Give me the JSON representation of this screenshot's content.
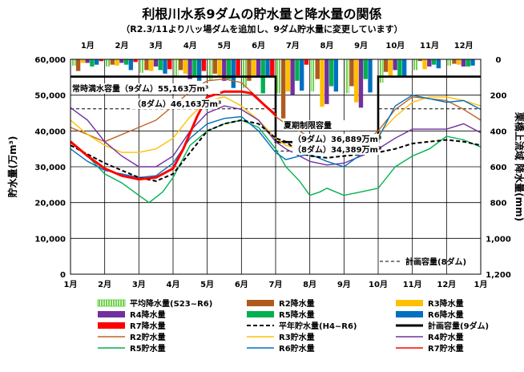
{
  "title": "利根川水系9ダムの貯水量と降水量の関係",
  "subtitle": "（R2.3/11より八ッ場ダムを追加し、9ダム貯水量に変更しています）",
  "axes": {
    "y_left_label": "貯水量(万m³)",
    "y_right_label": "栗橋上流域 降水量(mm)",
    "y_left_ticks": [
      "60,000",
      "50,000",
      "40,000",
      "30,000",
      "20,000",
      "10,000",
      "0"
    ],
    "y_right_ticks": [
      "0",
      "200",
      "400",
      "600",
      "800",
      "1,000",
      "1,200"
    ],
    "x_bottom_ticks": [
      "1月",
      "2月",
      "3月",
      "4月",
      "5月",
      "6月",
      "7月",
      "8月",
      "9月",
      "10月",
      "11月",
      "12月",
      "1月"
    ],
    "x_top_ticks": [
      "1月",
      "2月",
      "3月",
      "4月",
      "5月",
      "6月",
      "7月",
      "8月",
      "9月",
      "10月",
      "11月",
      "12月"
    ]
  },
  "annotations": {
    "normal_full_9": "常時満水容量（9ダム）55,163万m³",
    "normal_full_8": "（8ダム）46,163万m³",
    "summer_limit": "夏期制限容量",
    "summer_limit_9": "（9ダム）36,889万m³",
    "summer_limit_8": "（8ダム）34,389万m³",
    "plan_8_label": "計画容量(8ダム)"
  },
  "legend": [
    {
      "label": "平均降水量(S23~R6)",
      "color": "#7fdc5a",
      "style": "hatch"
    },
    {
      "label": "R2降水量",
      "color": "#b05a1e",
      "style": "bar"
    },
    {
      "label": "R3降水量",
      "color": "#ffc000",
      "style": "bar"
    },
    {
      "label": "R4降水量",
      "color": "#7030a0",
      "style": "bar"
    },
    {
      "label": "R5降水量",
      "color": "#00b050",
      "style": "bar"
    },
    {
      "label": "R6降水量",
      "color": "#0070c0",
      "style": "bar"
    },
    {
      "label": "R7降水量",
      "color": "#ff0000",
      "style": "bar"
    },
    {
      "label": "平年貯水量(H4~R6)",
      "color": "#000000",
      "style": "dash"
    },
    {
      "label": "計画容量(9ダム)",
      "color": "#000000",
      "style": "thick"
    },
    {
      "label": "R2貯水量",
      "color": "#c0652a",
      "style": "line"
    },
    {
      "label": "R3貯水量",
      "color": "#ffc000",
      "style": "line"
    },
    {
      "label": "R4貯水量",
      "color": "#7030a0",
      "style": "line"
    },
    {
      "label": "R5貯水量",
      "color": "#00b050",
      "style": "line"
    },
    {
      "label": "R6貯水量",
      "color": "#0070c0",
      "style": "line"
    },
    {
      "label": "R7貯水量",
      "color": "#ff0000",
      "style": "line"
    }
  ],
  "chart_data": {
    "type": "line",
    "xlabel": "",
    "ylabel": "貯水量(万m³)",
    "ylim": [
      0,
      60000
    ],
    "y2label": "栗橋上流域 降水量(mm)",
    "y2lim": [
      0,
      1200
    ],
    "y2_inverted": true,
    "x_unit": "month (1 = Jan 1, 13 = next Jan 1)",
    "xlim": [
      1,
      13
    ],
    "plan_capacity_9": [
      [
        1,
        55163
      ],
      [
        7,
        55163
      ],
      [
        7,
        36889
      ],
      [
        10,
        36889
      ],
      [
        10,
        55163
      ],
      [
        13,
        55163
      ]
    ],
    "plan_capacity_8": [
      [
        1,
        46163
      ],
      [
        7,
        46163
      ],
      [
        7,
        34389
      ],
      [
        10,
        34389
      ],
      [
        10,
        46163
      ],
      [
        13,
        46163
      ]
    ],
    "storage_series": [
      {
        "name": "平年貯水量(H4~R6)",
        "color": "#000000",
        "dash": true,
        "points": [
          [
            1,
            36000
          ],
          [
            1.5,
            33500
          ],
          [
            2,
            31000
          ],
          [
            2.5,
            29000
          ],
          [
            3,
            27000
          ],
          [
            3.5,
            26000
          ],
          [
            4,
            28000
          ],
          [
            4.5,
            34000
          ],
          [
            5,
            40000
          ],
          [
            5.5,
            42000
          ],
          [
            6,
            43000
          ],
          [
            6.5,
            42000
          ],
          [
            7,
            38000
          ],
          [
            7.3,
            37000
          ],
          [
            7.7,
            34000
          ],
          [
            8,
            33000
          ],
          [
            8.5,
            32500
          ],
          [
            9,
            33000
          ],
          [
            9.5,
            33500
          ],
          [
            10,
            34000
          ],
          [
            10.5,
            35000
          ],
          [
            11,
            36500
          ],
          [
            11.5,
            37000
          ],
          [
            12,
            37500
          ],
          [
            12.5,
            37000
          ],
          [
            13,
            36000
          ]
        ]
      },
      {
        "name": "R2貯水量",
        "color": "#c0652a",
        "points": [
          [
            1,
            41000
          ],
          [
            1.5,
            39000
          ],
          [
            2,
            37000
          ],
          [
            2.5,
            39000
          ],
          [
            3,
            41000
          ],
          [
            3.5,
            43000
          ],
          [
            4,
            47000
          ],
          [
            4.5,
            51000
          ],
          [
            5,
            54000
          ],
          [
            5.5,
            54500
          ],
          [
            6,
            53500
          ],
          [
            6.5,
            49000
          ],
          [
            7,
            44000
          ],
          [
            7.3,
            42000
          ],
          [
            7.7,
            40000
          ],
          [
            8,
            38000
          ],
          [
            8.5,
            37000
          ],
          [
            9,
            35000
          ],
          [
            9.5,
            36000
          ],
          [
            10,
            40000
          ],
          [
            10.5,
            46000
          ],
          [
            11,
            49500
          ],
          [
            11.5,
            49000
          ],
          [
            12,
            48500
          ],
          [
            12.5,
            46000
          ],
          [
            13,
            43000
          ]
        ]
      },
      {
        "name": "R3貯水量",
        "color": "#ffc000",
        "points": [
          [
            1,
            43000
          ],
          [
            1.5,
            39000
          ],
          [
            2,
            36000
          ],
          [
            2.5,
            34000
          ],
          [
            3,
            34000
          ],
          [
            3.5,
            35000
          ],
          [
            4,
            38000
          ],
          [
            4.5,
            44000
          ],
          [
            5,
            48500
          ],
          [
            5.5,
            49500
          ],
          [
            6,
            47000
          ],
          [
            6.5,
            43000
          ],
          [
            7,
            38000
          ],
          [
            7.3,
            36000
          ],
          [
            7.7,
            35000
          ],
          [
            8,
            34500
          ],
          [
            8.5,
            36000
          ],
          [
            9,
            36500
          ],
          [
            9.5,
            37000
          ],
          [
            10,
            39000
          ],
          [
            10.5,
            44000
          ],
          [
            11,
            48000
          ],
          [
            11.5,
            49500
          ],
          [
            12,
            49500
          ],
          [
            12.5,
            48500
          ],
          [
            13,
            47000
          ]
        ]
      },
      {
        "name": "R4貯水量",
        "color": "#7030a0",
        "points": [
          [
            1,
            46500
          ],
          [
            1.5,
            43000
          ],
          [
            2,
            37000
          ],
          [
            2.5,
            33000
          ],
          [
            3,
            30000
          ],
          [
            3.5,
            30000
          ],
          [
            4,
            33000
          ],
          [
            4.5,
            40000
          ],
          [
            5,
            45000
          ],
          [
            5.5,
            47000
          ],
          [
            6,
            46000
          ],
          [
            6.5,
            43000
          ],
          [
            7,
            37000
          ],
          [
            7.3,
            35000
          ],
          [
            7.7,
            33000
          ],
          [
            8,
            31500
          ],
          [
            8.5,
            30500
          ],
          [
            9,
            31000
          ],
          [
            9.5,
            33000
          ],
          [
            10,
            35000
          ],
          [
            10.5,
            38000
          ],
          [
            11,
            40500
          ],
          [
            11.5,
            40500
          ],
          [
            12,
            40500
          ],
          [
            12.5,
            42000
          ],
          [
            13,
            39500
          ]
        ]
      },
      {
        "name": "R5貯水量",
        "color": "#00b050",
        "points": [
          [
            1,
            37000
          ],
          [
            1.5,
            33000
          ],
          [
            2,
            28000
          ],
          [
            2.5,
            25500
          ],
          [
            3,
            22000
          ],
          [
            3.3,
            20000
          ],
          [
            3.7,
            23000
          ],
          [
            4,
            27000
          ],
          [
            4.5,
            36000
          ],
          [
            5,
            40000
          ],
          [
            5.5,
            42000
          ],
          [
            6,
            43000
          ],
          [
            6.5,
            41000
          ],
          [
            7,
            35000
          ],
          [
            7.3,
            30000
          ],
          [
            7.7,
            26000
          ],
          [
            8,
            22000
          ],
          [
            8.3,
            23000
          ],
          [
            8.5,
            24000
          ],
          [
            9,
            22000
          ],
          [
            9.5,
            23000
          ],
          [
            10,
            24000
          ],
          [
            10.5,
            30000
          ],
          [
            11,
            33000
          ],
          [
            11.5,
            35000
          ],
          [
            12,
            38500
          ],
          [
            12.5,
            37500
          ],
          [
            13,
            35500
          ]
        ]
      },
      {
        "name": "R6貯水量",
        "color": "#0070c0",
        "points": [
          [
            1,
            35000
          ],
          [
            1.5,
            31500
          ],
          [
            2,
            29000
          ],
          [
            2.5,
            28000
          ],
          [
            3,
            27000
          ],
          [
            3.5,
            27500
          ],
          [
            4,
            31000
          ],
          [
            4.5,
            38000
          ],
          [
            5,
            42000
          ],
          [
            5.5,
            43500
          ],
          [
            6,
            44000
          ],
          [
            6.5,
            40000
          ],
          [
            7,
            34000
          ],
          [
            7.3,
            32000
          ],
          [
            7.7,
            33000
          ],
          [
            8,
            33500
          ],
          [
            8.5,
            31500
          ],
          [
            9,
            30000
          ],
          [
            9.5,
            33500
          ],
          [
            10,
            38000
          ],
          [
            10.5,
            47000
          ],
          [
            11,
            50000
          ],
          [
            11.5,
            49000
          ],
          [
            12,
            48000
          ],
          [
            12.5,
            48500
          ],
          [
            13,
            46000
          ]
        ]
      },
      {
        "name": "R7貯水量",
        "color": "#ff0000",
        "bold": true,
        "points": [
          [
            1,
            37000
          ],
          [
            1.5,
            33000
          ],
          [
            2,
            29500
          ],
          [
            2.5,
            27500
          ],
          [
            3,
            26500
          ],
          [
            3.5,
            27000
          ],
          [
            4,
            29500
          ],
          [
            4.3,
            35000
          ],
          [
            4.7,
            44000
          ],
          [
            5,
            49500
          ],
          [
            5.5,
            51000
          ],
          [
            6,
            51000
          ],
          [
            6.3,
            50500
          ],
          [
            6.7,
            47000
          ],
          [
            7,
            44500
          ]
        ]
      }
    ],
    "rain_series": [
      {
        "name": "平均降水量(S23~R6)",
        "color": "#7fdc5a",
        "hatch": true,
        "values": [
          35,
          40,
          75,
          100,
          120,
          160,
          190,
          180,
          190,
          130,
          60,
          35
        ]
      },
      {
        "name": "R2降水量",
        "color": "#b05a1e",
        "values": [
          65,
          30,
          60,
          60,
          80,
          120,
          330,
          110,
          150,
          70,
          10,
          25
        ]
      },
      {
        "name": "R3降水量",
        "color": "#ffc000",
        "values": [
          20,
          35,
          65,
          80,
          100,
          90,
          180,
          265,
          240,
          100,
          55,
          30
        ]
      },
      {
        "name": "R4降水量",
        "color": "#7030a0",
        "values": [
          20,
          20,
          40,
          110,
          120,
          100,
          200,
          250,
          270,
          60,
          40,
          40
        ]
      },
      {
        "name": "R5降水量",
        "color": "#00b050",
        "values": [
          40,
          30,
          60,
          100,
          110,
          190,
          120,
          150,
          110,
          100,
          30,
          40
        ]
      },
      {
        "name": "R6降水量",
        "color": "#0070c0",
        "values": [
          30,
          60,
          80,
          120,
          160,
          100,
          175,
          180,
          185,
          100,
          50,
          35
        ]
      },
      {
        "name": "R7降水量",
        "color": "#ff0000",
        "values": [
          10,
          15,
          55,
          65,
          90,
          100,
          30
        ]
      }
    ]
  }
}
